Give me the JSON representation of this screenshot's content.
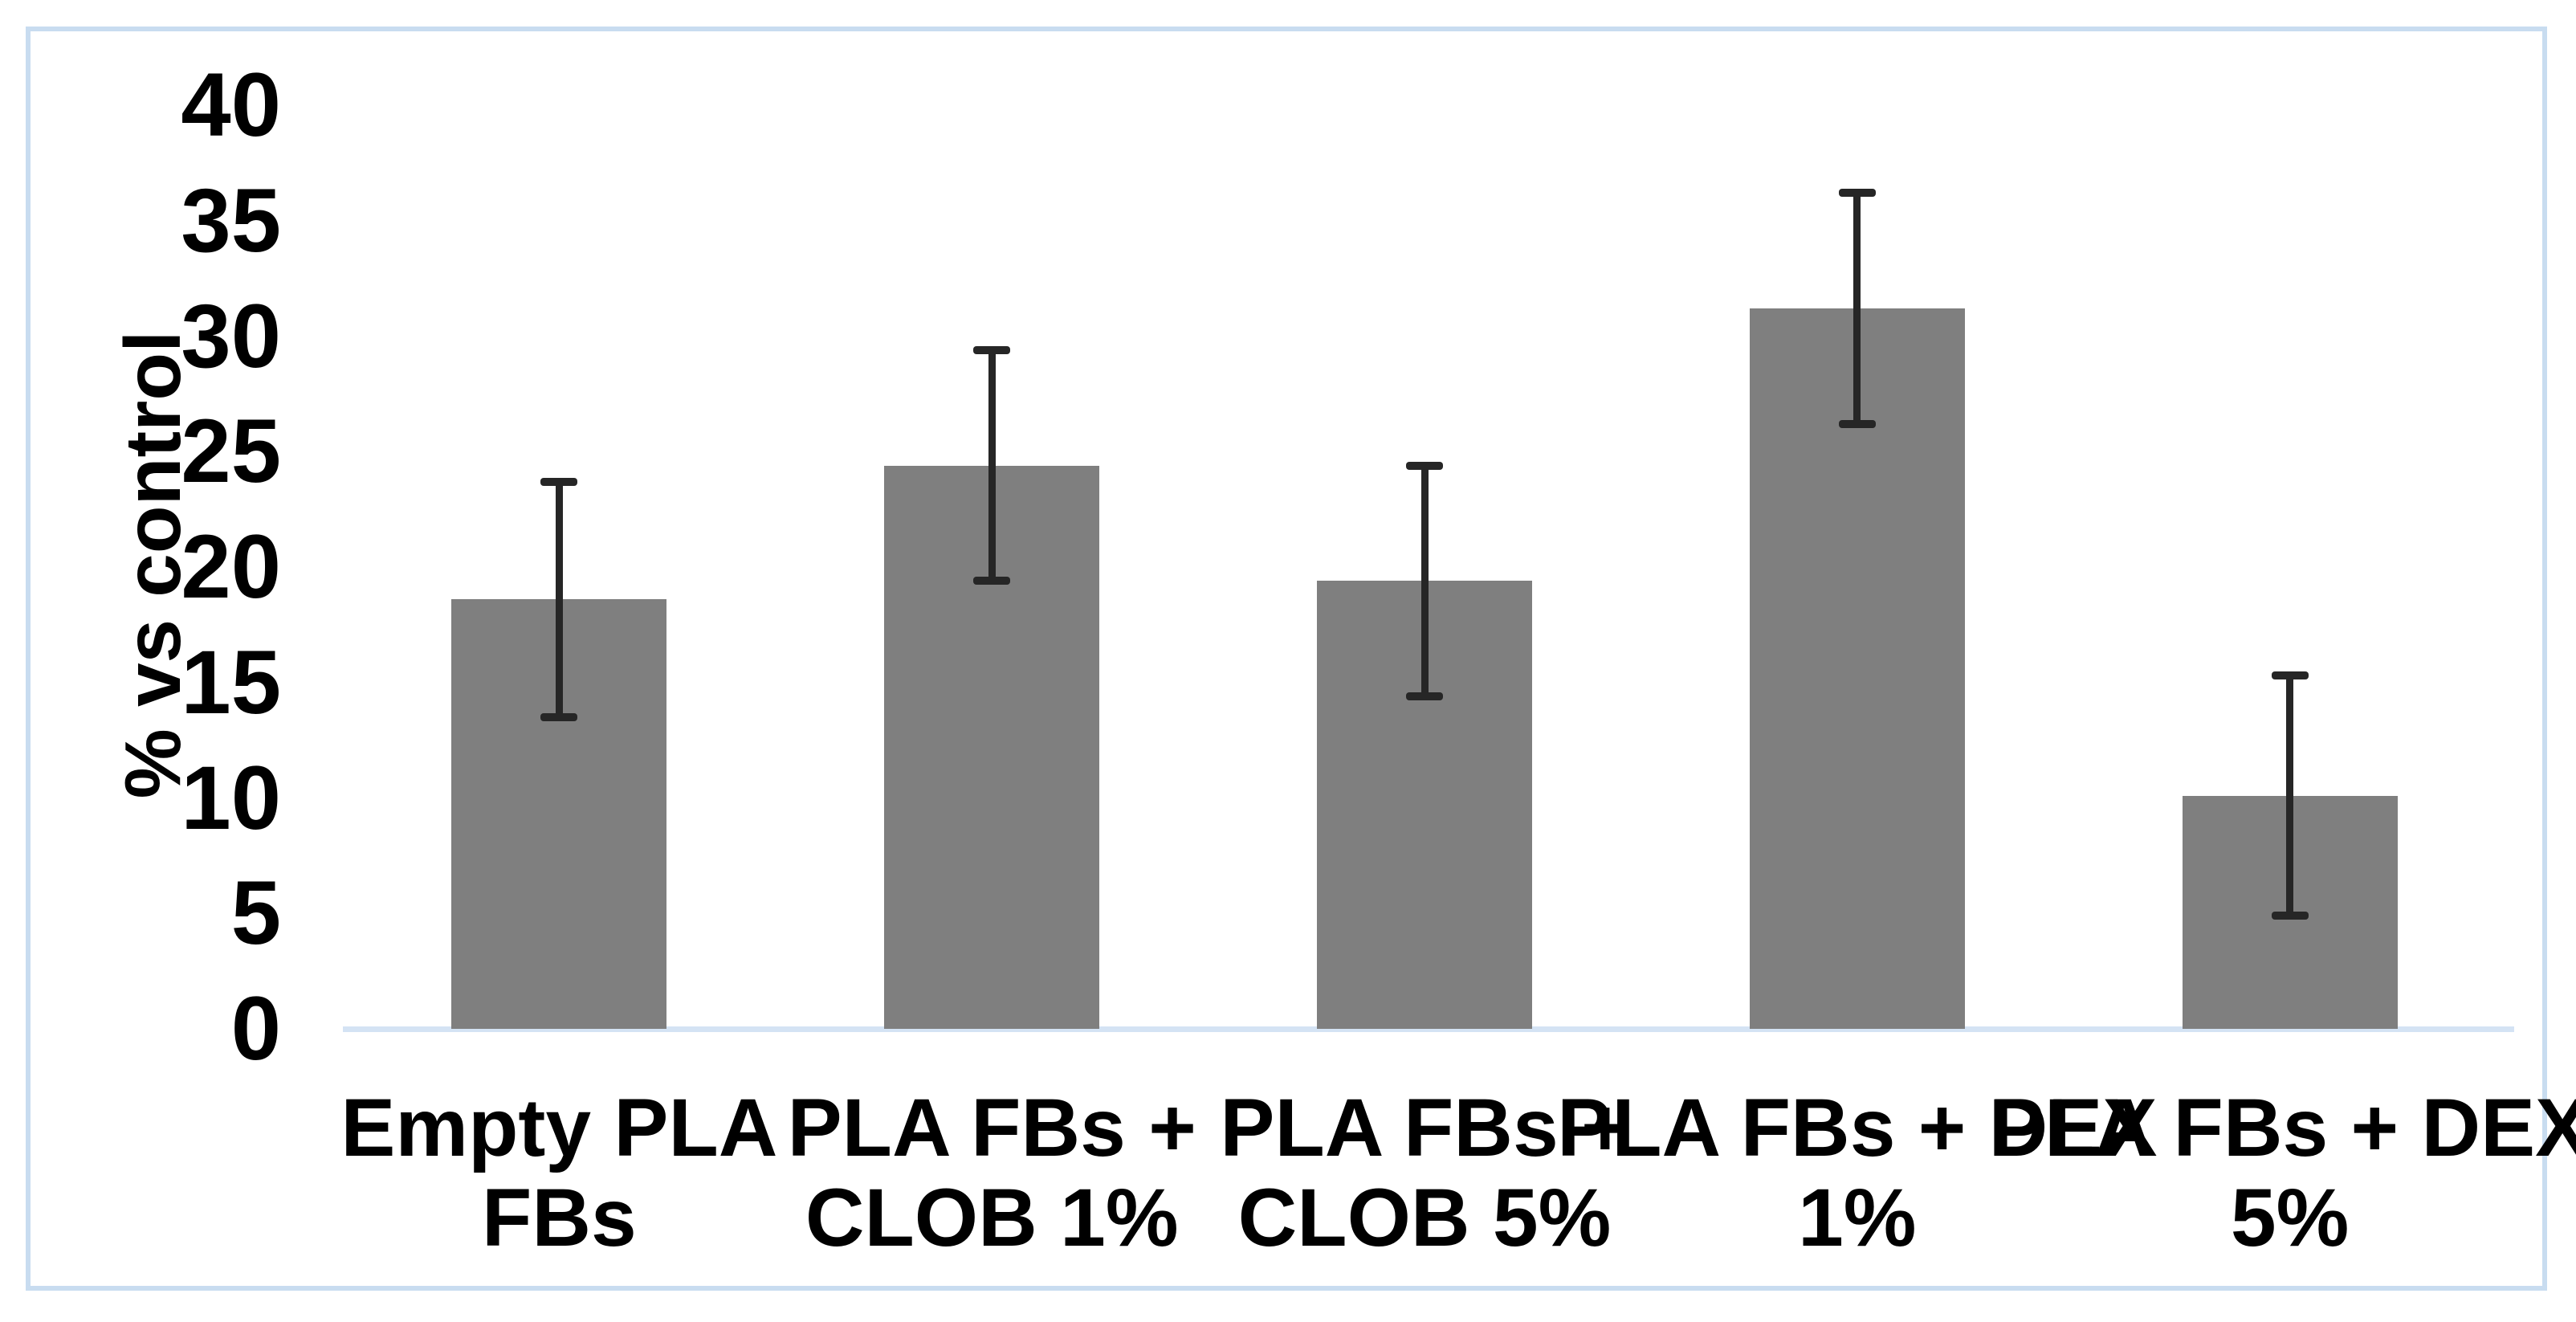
{
  "chart_data": {
    "type": "bar",
    "title": "",
    "xlabel": "",
    "ylabel": "% vs control",
    "categories": [
      "Empty PLA FBs",
      "PLA FBs + CLOB 1%",
      "PLA FBs + CLOB 5%",
      "PLA FBs + DEX 1%",
      "PLA FBs + DEX 5%"
    ],
    "category_label_lines": [
      [
        "Empty PLA",
        "FBs"
      ],
      [
        "PLA FBs +",
        "CLOB 1%"
      ],
      [
        "PLA FBs +",
        "CLOB 5%"
      ],
      [
        "PLA FBs + DEX",
        "1%"
      ],
      [
        "PLA FBs + DEX",
        "5%"
      ]
    ],
    "values": [
      18.6,
      24.4,
      19.4,
      31.2,
      10.1
    ],
    "error_bars": [
      5.1,
      5.0,
      5.0,
      5.0,
      5.2
    ],
    "ylim": [
      0,
      40
    ],
    "yticks": [
      "0",
      "5",
      "10",
      "15",
      "20",
      "25",
      "30",
      "35",
      "40"
    ],
    "grid": false,
    "legend": "none",
    "colors": {
      "bar_fill": "#7f7f7f",
      "error_bar": "#262626",
      "frame_border": "#c8dcf0",
      "axis_line": "#d4e3f4",
      "text": "#000000",
      "background": "#ffffff"
    }
  }
}
